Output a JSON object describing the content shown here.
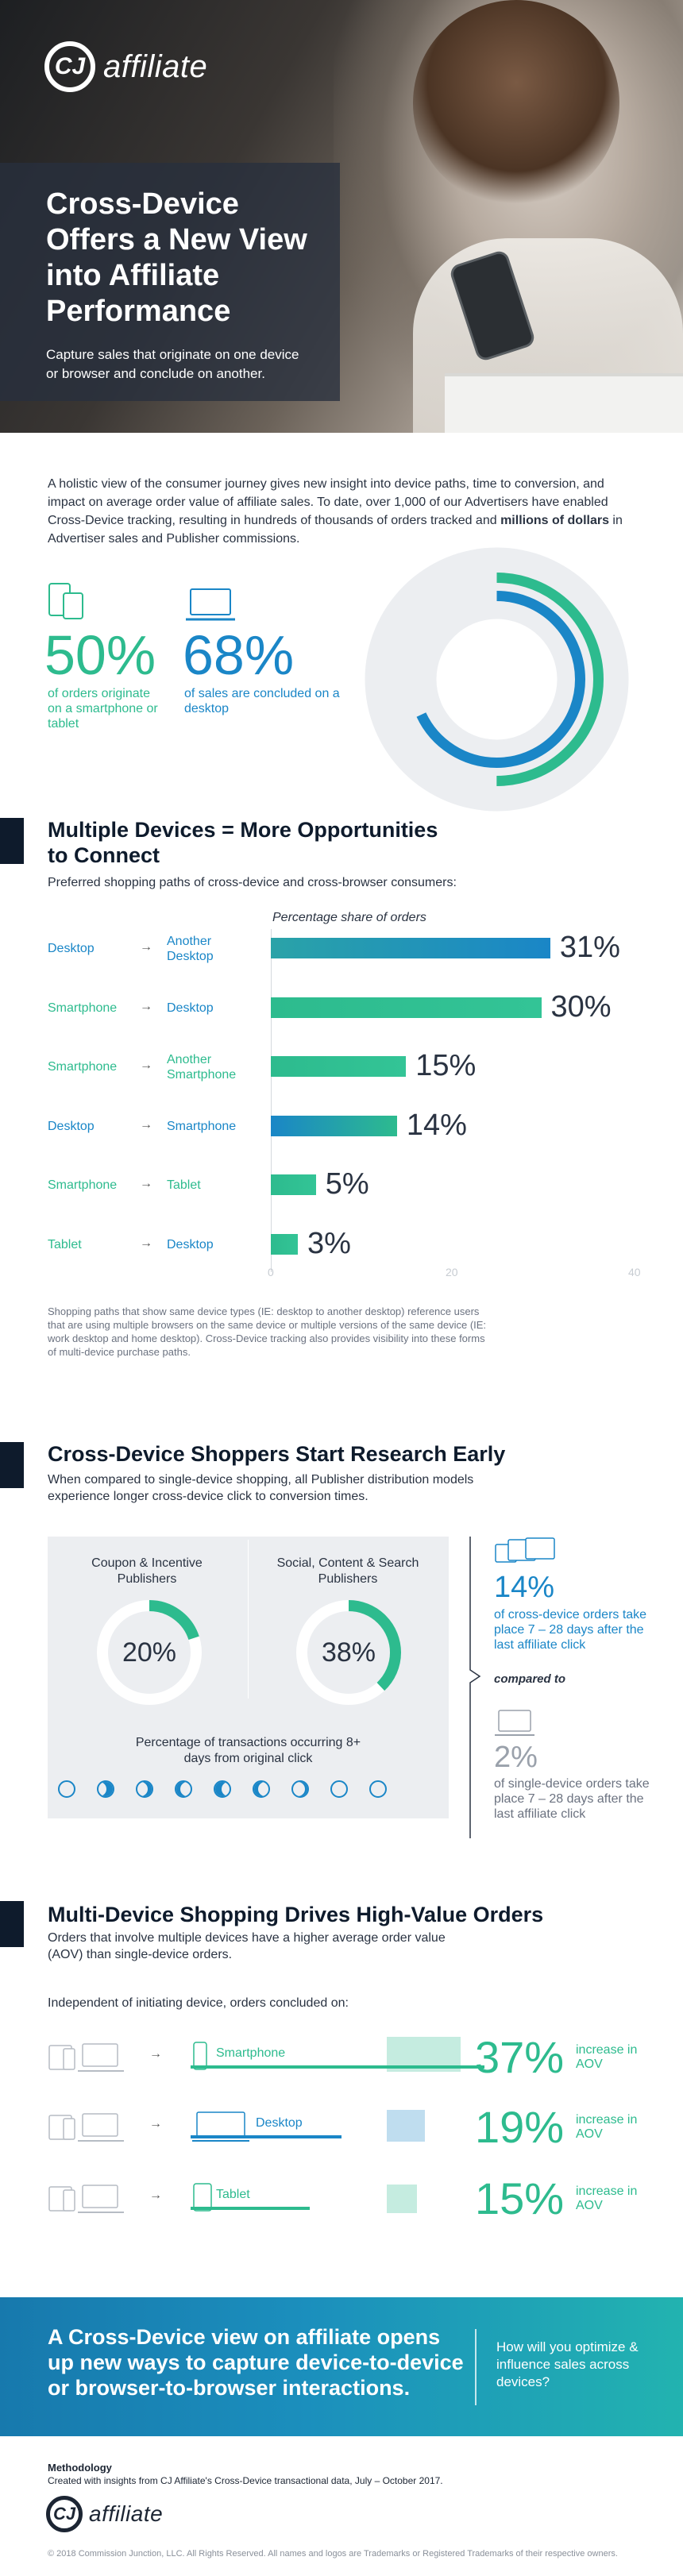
{
  "brand": {
    "logo_mark": "CJ",
    "logo_word": "affiliate"
  },
  "hero": {
    "title": "Cross-Device Offers a New View into Affiliate Performance",
    "subtitle": "Capture sales that originate on one device or browser and conclude on another."
  },
  "intro": {
    "text_before": "A holistic view of the consumer journey gives new insight into device paths, time to conversion, and impact on average order value of affiliate sales. To date, over 1,000 of our Advertisers have enabled Cross-Device tracking, resulting in hundreds of thousands of orders tracked and ",
    "text_bold": "millions of dollars",
    "text_after": " in Advertiser sales and Publisher commissions.",
    "stat1": {
      "value": "50%",
      "caption": "of orders originate on a smartphone or tablet",
      "icon": "phone-tablet-icon"
    },
    "stat2": {
      "value": "68%",
      "caption": "of sales are concluded on a desktop",
      "icon": "laptop-icon"
    },
    "ring_data": {
      "smartphone_tablet_share": 0.5,
      "desktop_share": 0.68
    }
  },
  "section1": {
    "title": "Multiple Devices = More Opportunities to Connect",
    "subtitle": "Preferred shopping paths of cross-device and cross-browser consumers:",
    "footnote": "Shopping paths that show same device types (IE: desktop to another desktop) reference users that are using multiple browsers on the same device or multiple versions of the same device (IE: work desktop and home desktop). Cross-Device tracking also provides visibility into these forms of multi-device purchase paths."
  },
  "chart_data": {
    "type": "bar",
    "orientation": "horizontal",
    "title": "Percentage share of orders",
    "categories": [
      "Desktop → Another Desktop",
      "Smartphone → Desktop",
      "Smartphone → Another Smartphone",
      "Desktop → Smartphone",
      "Smartphone → Tablet",
      "Tablet → Desktop"
    ],
    "from": [
      "Desktop",
      "Smartphone",
      "Smartphone",
      "Desktop",
      "Smartphone",
      "Tablet"
    ],
    "to": [
      "Another Desktop",
      "Desktop",
      "Another Smartphone",
      "Smartphone",
      "Tablet",
      "Desktop"
    ],
    "values": [
      31,
      30,
      15,
      14,
      5,
      3
    ],
    "labels": [
      "31%",
      "30%",
      "15%",
      "14%",
      "5%",
      "3%"
    ],
    "xlim": [
      0,
      40
    ],
    "xticks": [
      "0",
      "20",
      "40"
    ],
    "colors": {
      "blue": "#1a86c7",
      "teal": "#2dbb8e"
    }
  },
  "section2": {
    "title": "Cross-Device Shoppers Start Research Early",
    "subtitle": "When compared to single-device shopping, all Publisher distribution models experience longer cross-device click to conversion times.",
    "donut1": {
      "title": "Coupon & Incentive Publishers",
      "value": "20%",
      "fraction": 0.2
    },
    "donut2": {
      "title": "Social, Content & Search Publishers",
      "value": "38%",
      "fraction": 0.38
    },
    "donut_caption": "Percentage of transactions occurring 8+ days from original click",
    "cross_value": "14%",
    "cross_caption": "of cross-device orders take place 7 – 28 days after the last affiliate click",
    "compared_to": "compared to",
    "single_value": "2%",
    "single_caption": "of single-device orders take place 7 – 28 days after the last affiliate click"
  },
  "section3": {
    "title": "Multi-Device Shopping Drives High-Value Orders",
    "subtitle": "Orders that involve multiple devices have a higher average order value (AOV) than single-device orders.",
    "lead": "Independent of initiating device, orders concluded on:",
    "rows": [
      {
        "device": "Smartphone",
        "value": "37%",
        "caption": "increase in AOV",
        "fraction": 0.37,
        "color": "#2dbb8e"
      },
      {
        "device": "Desktop",
        "value": "19%",
        "caption": "increase in AOV",
        "fraction": 0.19,
        "color": "#1a86c7"
      },
      {
        "device": "Tablet",
        "value": "15%",
        "caption": "increase in AOV",
        "fraction": 0.15,
        "color": "#2dbb8e"
      }
    ]
  },
  "cta": {
    "main": "A Cross-Device view on affiliate opens up new ways to capture device-to-device or browser-to-browser interactions.",
    "side": "How will you optimize & influence sales across devices?"
  },
  "methodology": {
    "heading": "Methodology",
    "text": "Created with insights from CJ Affiliate's Cross-Device transactional data, July – October 2017."
  },
  "copyright": "© 2018 Commission Junction, LLC. All Rights Reserved. All names and logos are Trademarks or Registered Trademarks of their respective owners."
}
